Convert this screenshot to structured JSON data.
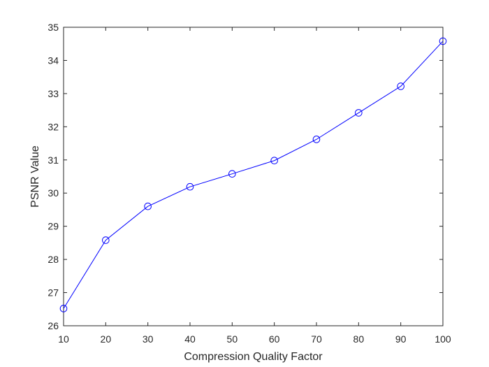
{
  "chart_data": {
    "type": "line",
    "title": "",
    "xlabel": "Compression Quality Factor",
    "ylabel": "PSNR Value",
    "xlim": [
      10,
      100
    ],
    "ylim": [
      26,
      35
    ],
    "xticks": [
      10,
      20,
      30,
      40,
      50,
      60,
      70,
      80,
      90,
      100
    ],
    "yticks": [
      26,
      27,
      28,
      29,
      30,
      31,
      32,
      33,
      34,
      35
    ],
    "grid": false,
    "legend": "none",
    "series": [
      {
        "x": [
          10,
          20,
          30,
          40,
          50,
          60,
          70,
          80,
          90,
          100
        ],
        "y": [
          26.52,
          28.58,
          29.6,
          30.19,
          30.58,
          30.98,
          31.62,
          32.42,
          33.22,
          34.58
        ],
        "color": "#0000ff",
        "marker": "circle-open"
      }
    ]
  }
}
